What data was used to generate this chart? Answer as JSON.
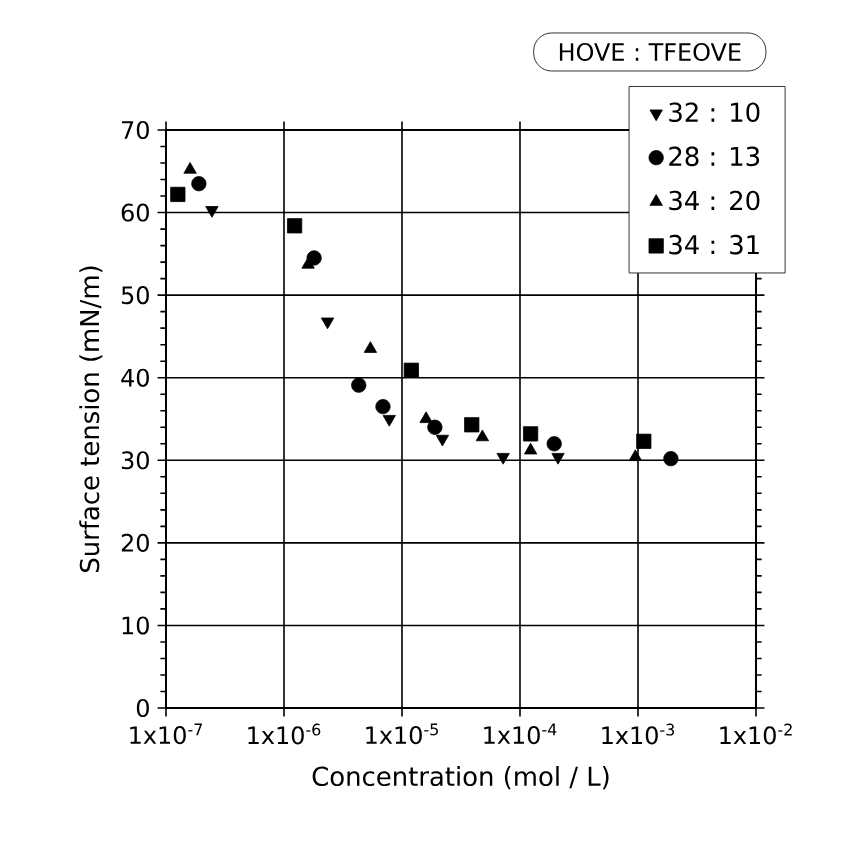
{
  "chart_data": {
    "type": "scatter",
    "xlabel": "Concentration  (mol / L)",
    "ylabel": "Surface tension (mN/m)",
    "legend_title": "HOVE : TFEOVE",
    "log": "x",
    "grid": true,
    "legend": "top right",
    "xlim": [
      1e-07,
      0.01
    ],
    "ylim": [
      0,
      70
    ],
    "xticks": [
      {
        "value": 1e-07,
        "label": "1x10$^{-7}$"
      },
      {
        "value": 1e-06,
        "label": "1x10$^{-6}$"
      },
      {
        "value": 1e-05,
        "label": "1x10$^{-5}$"
      },
      {
        "value": 0.0001,
        "label": "1x10$^{-4}$"
      },
      {
        "value": 0.001,
        "label": "1x10$^{-3}$"
      },
      {
        "value": 0.01,
        "label": "1x10$^{-2}$"
      }
    ],
    "yticks": [
      0,
      10,
      20,
      30,
      40,
      50,
      60,
      70
    ],
    "series": [
      {
        "name": "32 : 10",
        "color": "#000000",
        "marker": "triangle-down",
        "x": [
          2.45e-07,
          2.34e-06,
          7.8e-06,
          2.2e-05,
          7.2e-05,
          0.00021
        ],
        "values": [
          60.3,
          46.8,
          35.0,
          32.6,
          30.4,
          30.4
        ]
      },
      {
        "name": "28 : 13",
        "color": "#000000",
        "marker": "circle",
        "x": [
          1.9e-07,
          1.8e-06,
          4.3e-06,
          6.9e-06,
          1.9e-05,
          0.000195,
          0.0019
        ],
        "values": [
          63.5,
          54.5,
          39.1,
          36.5,
          34.0,
          32.0,
          30.2
        ]
      },
      {
        "name": "34 : 20",
        "color": "#000000",
        "marker": "triangle",
        "x": [
          1.6e-07,
          1.6e-06,
          5.4e-06,
          1.6e-05,
          4.8e-05,
          0.000123,
          0.00095
        ],
        "values": [
          65.2,
          53.7,
          43.5,
          35.0,
          32.8,
          31.2,
          30.4
        ]
      },
      {
        "name": "34 : 31",
        "color": "#000000",
        "marker": "square",
        "x": [
          1.26e-07,
          1.23e-06,
          1.2e-05,
          3.9e-05,
          0.000123,
          0.00112
        ],
        "values": [
          62.2,
          58.4,
          40.9,
          34.3,
          33.2,
          32.3
        ]
      }
    ]
  }
}
